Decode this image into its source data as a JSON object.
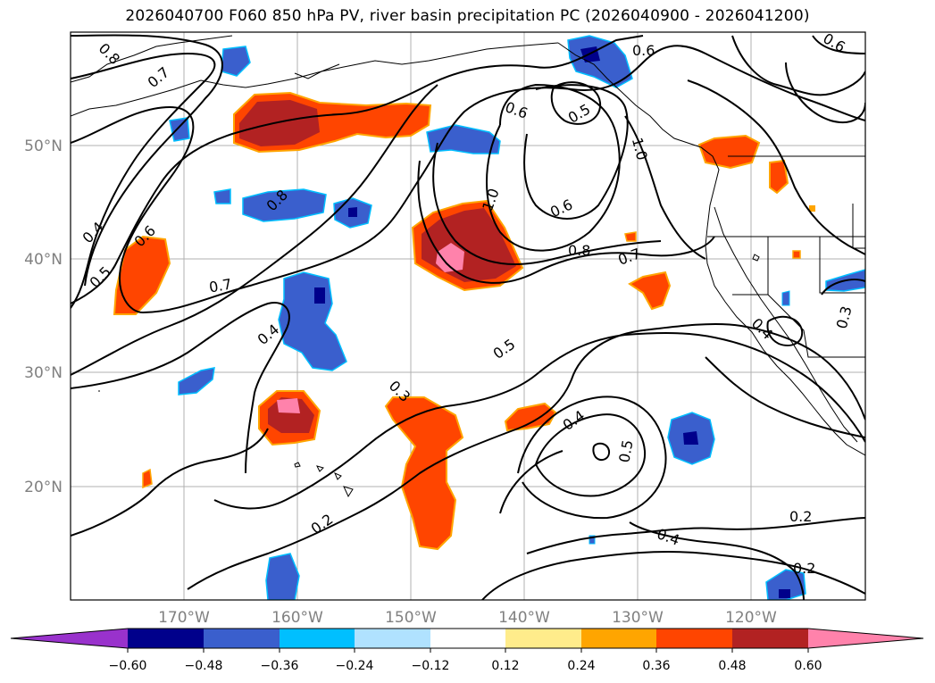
{
  "title": "2026040700 F060 850 hPa PV, river basin precipitation PC (2026040900 - 2026041200)",
  "axes": {
    "lon_labels": [
      "170°W",
      "160°W",
      "150°W",
      "140°W",
      "130°W",
      "120°W"
    ],
    "lat_labels": [
      "50°N",
      "40°N",
      "30°N",
      "20°N"
    ],
    "lon_range": [
      -180,
      -110
    ],
    "lat_range": [
      10,
      60
    ],
    "grid": true
  },
  "colorbar": {
    "extend": "both",
    "ticks": [
      "−0.60",
      "−0.48",
      "−0.36",
      "−0.24",
      "−0.12",
      "0.12",
      "0.24",
      "0.36",
      "0.48",
      "0.60"
    ],
    "colors": {
      "under": "#9932cc",
      "neg_060": "#00008b",
      "neg_048": "#3a5fcd",
      "neg_036": "#00bfff",
      "neg_024": "#b0e2ff",
      "neutral": "#ffffff",
      "pos_012": "#ffec8b",
      "pos_024": "#ffa500",
      "pos_036": "#ff4500",
      "pos_048": "#b22222",
      "over": "#ff82ab"
    }
  },
  "contour_labels": [
    "0.8",
    "0.7",
    "0.4",
    "0.6",
    "0.5",
    "0.7",
    "0.8",
    "0.4",
    "0.3",
    "0.2",
    "0.5",
    "0.6",
    "0.5",
    "1.0",
    "0.6",
    "0.8",
    "0.7",
    "0.6",
    "1.0",
    "0.4",
    "0.5",
    "0.4",
    "0.2",
    "0.2",
    "0.4",
    "0.3",
    "0.6"
  ]
}
